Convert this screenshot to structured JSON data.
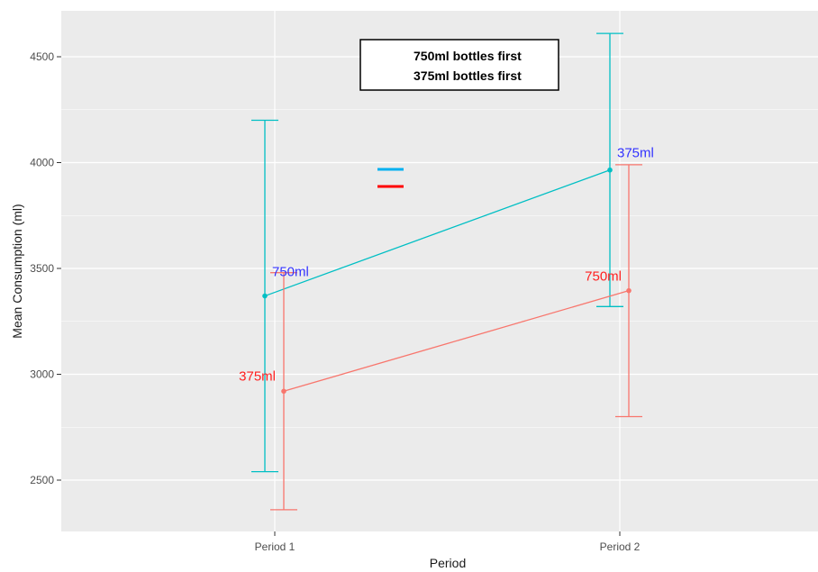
{
  "chart_data": {
    "type": "line",
    "xlabel": "Period",
    "ylabel": "Mean Consumption (ml)",
    "categories": [
      "Period 1",
      "Period 2"
    ],
    "ylim": [
      2280,
      4700
    ],
    "yticks": [
      2500,
      3000,
      3500,
      4000,
      4500
    ],
    "grid": true,
    "background_color": "#EBEBEB",
    "legend": {
      "placement": "top-center",
      "entries": [
        "750ml bottles first",
        "375ml bottles first"
      ]
    },
    "series": [
      {
        "name": "750ml bottles first",
        "color": "#00BFC4",
        "legend_color": "#00B0F0",
        "label_color": "#3333FF",
        "values": [
          3370,
          3965
        ],
        "error_low": [
          2540,
          3320
        ],
        "error_high": [
          4200,
          4610
        ],
        "point_labels": [
          "750ml",
          "375ml"
        ]
      },
      {
        "name": "375ml bottles first",
        "color": "#F8766D",
        "legend_color": "#FF0000",
        "label_color": "#FF2020",
        "values": [
          2920,
          3395
        ],
        "error_low": [
          2360,
          2800
        ],
        "error_high": [
          3480,
          3990
        ],
        "point_labels": [
          "375ml",
          "750ml"
        ]
      }
    ]
  }
}
